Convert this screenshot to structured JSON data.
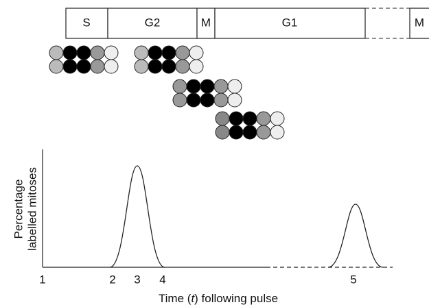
{
  "cell_cycle": {
    "phases": [
      "S",
      "G2",
      "M",
      "G1",
      "M"
    ]
  },
  "graph": {
    "y_label": [
      "Percentage",
      "labelled mitoses"
    ],
    "x_label": {
      "before": "Time (",
      "italic": "t",
      "after": ") following pulse"
    },
    "tick_labels": [
      "1",
      "2",
      "3",
      "4",
      "5"
    ]
  }
}
